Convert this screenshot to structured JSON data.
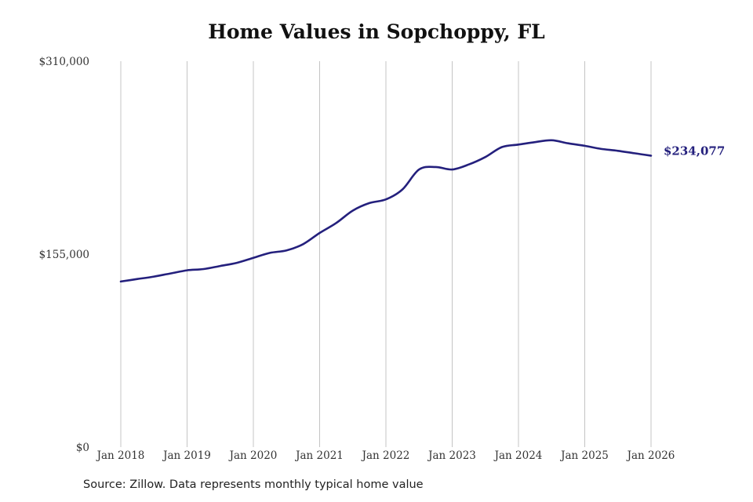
{
  "chart_data": {
    "type": "line",
    "title": "Home Values in Sopchoppy, FL",
    "xlabel": "",
    "ylabel": "",
    "ylim": [
      0,
      310000
    ],
    "y_ticks": [
      "$0",
      "$155,000",
      "$310,000"
    ],
    "y_tick_values": [
      0,
      155000,
      310000
    ],
    "x_ticks": [
      "Jan 2018",
      "Jan 2019",
      "Jan 2020",
      "Jan 2021",
      "Jan 2022",
      "Jan 2023",
      "Jan 2024",
      "Jan 2025",
      "Jan 2026"
    ],
    "x_tick_values": [
      2018,
      2019,
      2020,
      2021,
      2022,
      2023,
      2024,
      2025,
      2026
    ],
    "xlim": [
      2018,
      2026
    ],
    "grid": "vertical",
    "series": [
      {
        "color": "#24207d",
        "x": [
          2018.0,
          2018.25,
          2018.5,
          2018.75,
          2019.0,
          2019.25,
          2019.5,
          2019.75,
          2020.0,
          2020.25,
          2020.5,
          2020.75,
          2021.0,
          2021.25,
          2021.5,
          2021.75,
          2022.0,
          2022.25,
          2022.5,
          2022.75,
          2023.0,
          2023.25,
          2023.5,
          2023.75,
          2024.0,
          2024.25,
          2024.5,
          2024.75,
          2025.0,
          2025.25,
          2025.5,
          2025.75,
          2026.0
        ],
        "values": [
          133000,
          135000,
          137000,
          139500,
          142000,
          143000,
          145500,
          148000,
          152000,
          156000,
          158000,
          163000,
          172000,
          180000,
          190000,
          196000,
          199000,
          207000,
          223000,
          225000,
          223000,
          227000,
          233000,
          241000,
          243000,
          245000,
          246500,
          244000,
          242000,
          239500,
          238000,
          236000,
          234077
        ]
      }
    ],
    "end_label": "$234,077"
  },
  "source_note": "Source: Zillow. Data represents monthly typical home value"
}
